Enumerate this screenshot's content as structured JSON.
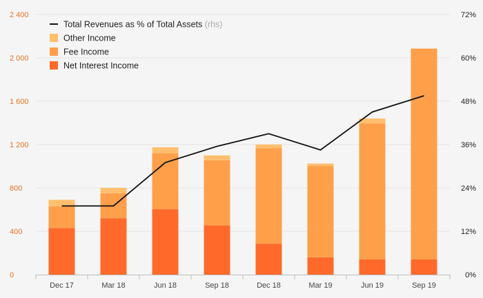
{
  "chart_data": {
    "type": "bar",
    "stacked": true,
    "categories": [
      "Dec 17",
      "Mar 18",
      "Jun 18",
      "Sep 18",
      "Dec 18",
      "Mar 19",
      "Jun 19",
      "Sep 19"
    ],
    "series": [
      {
        "name": "Net Interest Income",
        "values": [
          430,
          520,
          605,
          455,
          285,
          160,
          140,
          140
        ],
        "color": "#ff6a2b"
      },
      {
        "name": "Fee Income",
        "values": [
          200,
          230,
          515,
          600,
          880,
          840,
          1255,
          1945
        ],
        "color": "#ff9f4a"
      },
      {
        "name": "Other Income",
        "values": [
          60,
          50,
          55,
          45,
          35,
          25,
          45,
          0
        ],
        "color": "#ffbf6e"
      }
    ],
    "line_series": {
      "name": "Total Revenues as % of Total Assets",
      "name_suffix": "(rhs)",
      "values": [
        19,
        19,
        31,
        35.5,
        39,
        34.5,
        45,
        49.5
      ],
      "color": "#111111",
      "axis": "right"
    },
    "ylim_left": [
      0,
      2400
    ],
    "yticks_left": [
      0,
      400,
      800,
      1200,
      1600,
      2000,
      2400
    ],
    "yticks_left_labels": [
      "0",
      "400",
      "800",
      "1 200",
      "1 600",
      "2 000",
      "2 400"
    ],
    "ylim_right": [
      0,
      72
    ],
    "yticks_right": [
      0,
      12,
      24,
      36,
      48,
      60,
      72
    ],
    "yticks_right_labels": [
      "0%",
      "12%",
      "24%",
      "36%",
      "48%",
      "60%",
      "72%"
    ],
    "legend_position": "top-left",
    "grid": true,
    "left_axis_color": "#e8701e"
  }
}
